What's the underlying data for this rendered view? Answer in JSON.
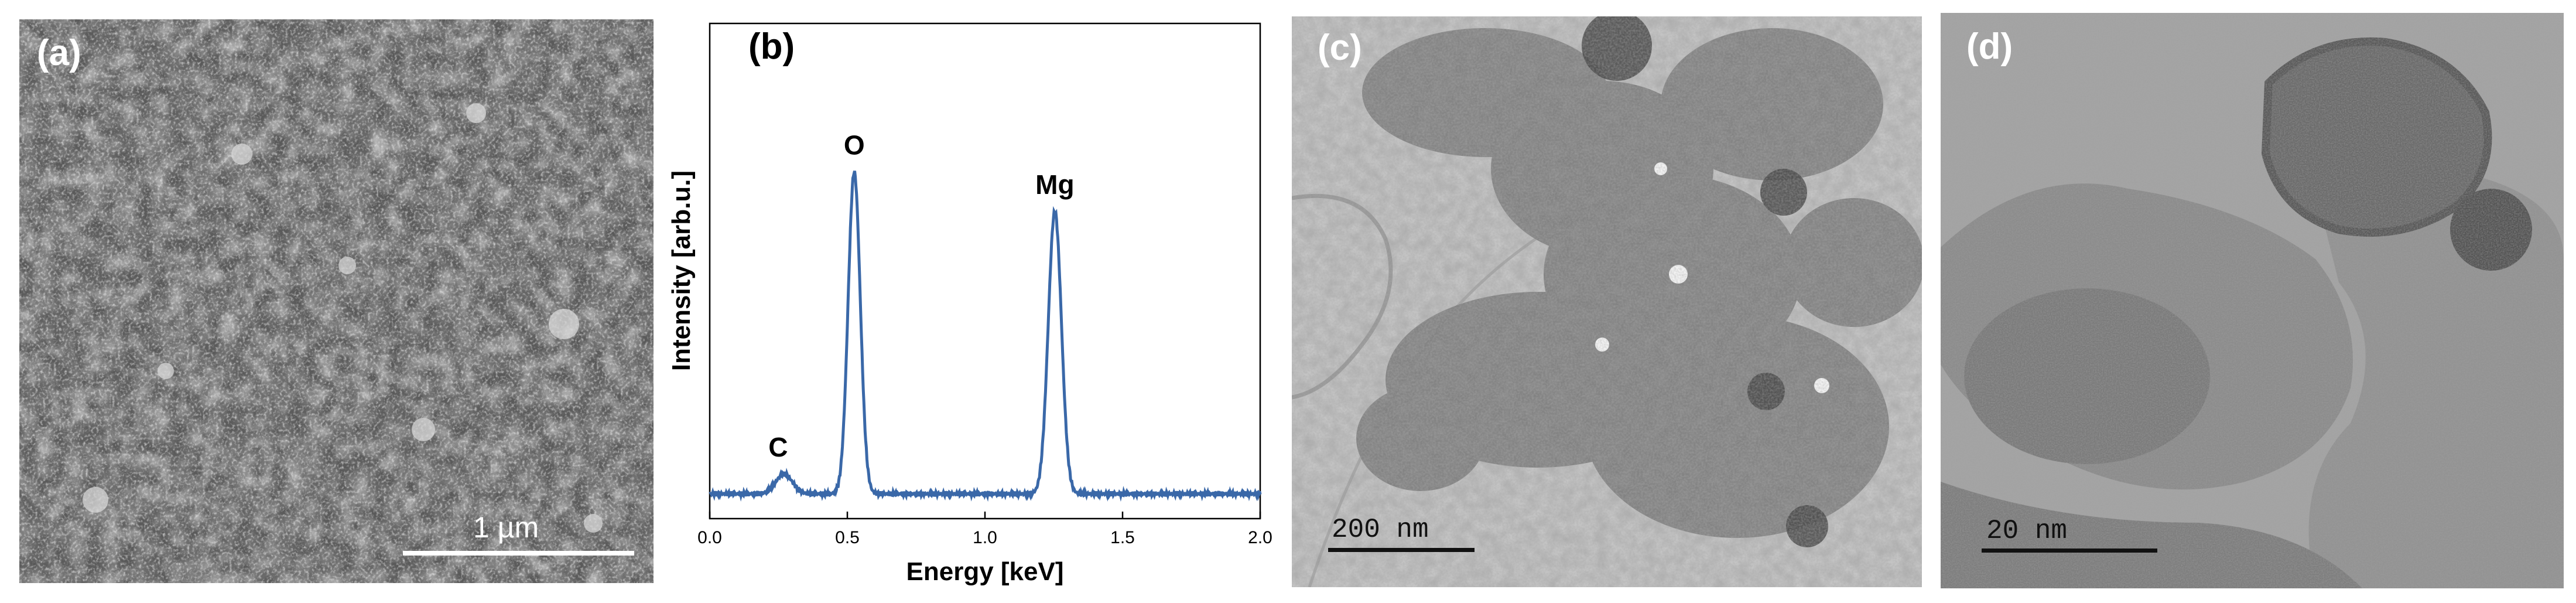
{
  "panels": {
    "a": {
      "label": "(a)",
      "scale_bar": "1 µm"
    },
    "b": {
      "label": "(b)"
    },
    "c": {
      "label": "(c)",
      "scale_bar": "200 nm"
    },
    "d": {
      "label": "(d)",
      "scale_bar": "20 nm"
    }
  },
  "chart_data": {
    "type": "line",
    "xlabel": "Energy [keV]",
    "ylabel": "Intensity [arb.u.]",
    "xlim": [
      0.0,
      2.0
    ],
    "ylim": [
      0,
      1
    ],
    "xticks": [
      "0.0",
      "0.5",
      "1.0",
      "1.5",
      "2.0"
    ],
    "line_color": "#3a68a8",
    "baseline": 0.05,
    "peaks": [
      {
        "label": "C",
        "x": 0.27,
        "y": 0.09
      },
      {
        "label": "O",
        "x": 0.525,
        "y": 0.7
      },
      {
        "label": "Mg",
        "x": 1.254,
        "y": 0.62
      }
    ]
  }
}
